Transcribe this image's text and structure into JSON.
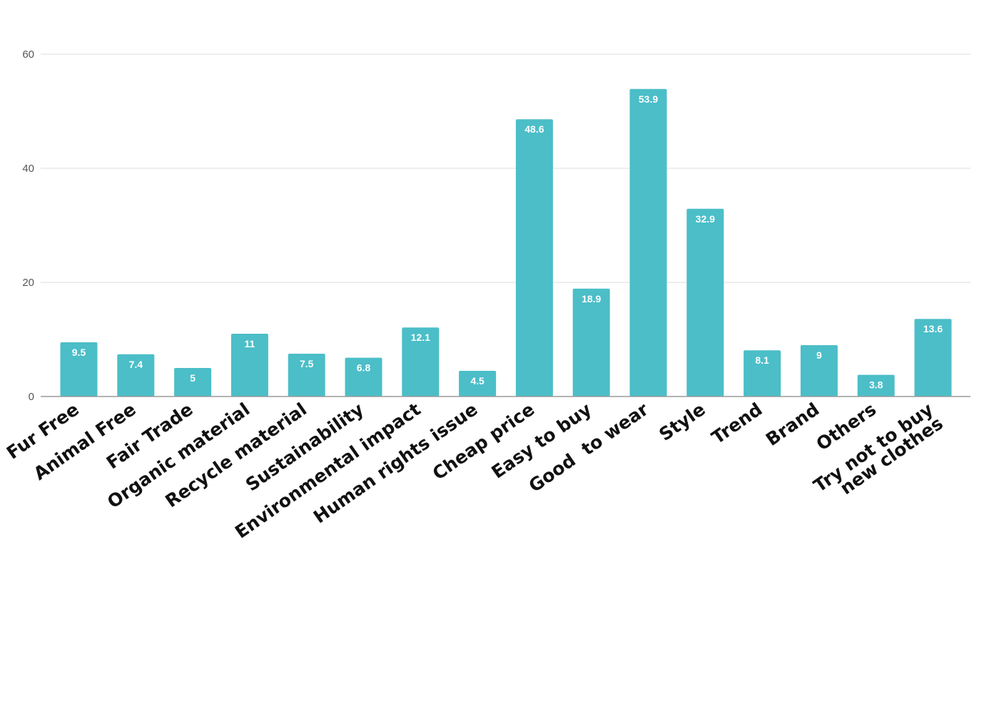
{
  "chart_data": {
    "type": "bar",
    "title": "",
    "xlabel": "",
    "ylabel": "",
    "ylim": [
      0,
      60
    ],
    "yticks": [
      0,
      20,
      40,
      60
    ],
    "grid": true,
    "legend": "none",
    "bar_color": "#4bbec8",
    "categories": [
      "Fur Free",
      "Animal Free",
      "Fair Trade",
      "Organic material",
      "Recycle material",
      "Sustainability",
      "Environmental impact",
      "Human rights issue",
      "Cheap price",
      "Easy to buy",
      "Good  to wear",
      "Style",
      "Trend",
      "Brand",
      "Others",
      "Try not to buy\nnew clothes"
    ],
    "values": [
      9.5,
      7.4,
      5,
      11,
      7.5,
      6.8,
      12.1,
      4.5,
      48.6,
      18.9,
      53.9,
      32.9,
      8.1,
      9,
      3.8,
      13.6
    ],
    "value_labels": [
      "9.5",
      "7.4",
      "5",
      "11",
      "7.5",
      "6.8",
      "12.1",
      "4.5",
      "48.6",
      "18.9",
      "53.9",
      "32.9",
      "8.1",
      "9",
      "3.8",
      "13.6"
    ]
  }
}
